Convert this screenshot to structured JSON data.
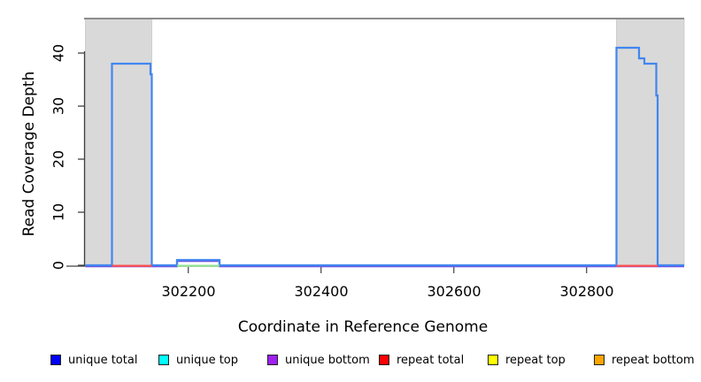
{
  "chart_data": {
    "type": "line",
    "title": "",
    "xlabel": "Coordinate in Reference Genome",
    "ylabel": "Read Coverage Depth",
    "xlim": [
      302043,
      302947
    ],
    "ylim": [
      0,
      46.5
    ],
    "xticks": [
      302200,
      302400,
      302600,
      302800
    ],
    "yticks": [
      0,
      10,
      20,
      30,
      40
    ],
    "grid": false,
    "legend_position": "bottom",
    "colors": {
      "plot_top_border": "#8c8c8c",
      "axis": "#404040",
      "shaded_region_fill": "#d9d9d9",
      "shaded_region_border": "#c8c8c8",
      "coverage_line": "#4186f0",
      "bottom_strand_line": "#7050e0",
      "repeat_baseline": "#ff5050",
      "bump_baseline": "#8fe08f"
    },
    "shaded_regions": [
      {
        "name": "left-repeat-region",
        "x0": 302045,
        "x1": 302145
      },
      {
        "name": "right-repeat-region",
        "x0": 302845,
        "x1": 302947
      }
    ],
    "series": [
      {
        "name": "unique bottom (line)",
        "color": "#7050e0",
        "points": [
          [
            302045,
            0
          ],
          [
            302183,
            0
          ],
          [
            302183,
            1
          ],
          [
            302247,
            1
          ],
          [
            302247,
            0
          ],
          [
            302947,
            0
          ]
        ]
      },
      {
        "name": "unique total (line)",
        "color": "#4186f0",
        "points": [
          [
            302045,
            0
          ],
          [
            302085,
            0
          ],
          [
            302085,
            38
          ],
          [
            302143,
            38
          ],
          [
            302143,
            36
          ],
          [
            302145,
            36
          ],
          [
            302145,
            0
          ],
          [
            302183,
            0
          ],
          [
            302183,
            1
          ],
          [
            302247,
            1
          ],
          [
            302247,
            0
          ],
          [
            302845,
            0
          ],
          [
            302845,
            41
          ],
          [
            302879,
            41
          ],
          [
            302879,
            39
          ],
          [
            302887,
            39
          ],
          [
            302887,
            38
          ],
          [
            302905,
            38
          ],
          [
            302905,
            32
          ],
          [
            302907,
            32
          ],
          [
            302907,
            0
          ],
          [
            302947,
            0
          ]
        ]
      },
      {
        "name": "bump baseline accent (line)",
        "color": "#8fe08f",
        "points": [
          [
            302183,
            0
          ],
          [
            302247,
            0
          ]
        ]
      },
      {
        "name": "repeat total left (line)",
        "color": "#ff5050",
        "points": [
          [
            302085,
            0
          ],
          [
            302145,
            0
          ]
        ]
      },
      {
        "name": "repeat total right (line)",
        "color": "#ff5050",
        "points": [
          [
            302845,
            0
          ],
          [
            302907,
            0
          ]
        ]
      }
    ]
  },
  "legend": {
    "items": [
      {
        "label": "unique total",
        "color": "#0000ff"
      },
      {
        "label": "unique top",
        "color": "#00ffff"
      },
      {
        "label": "unique bottom",
        "color": "#a020f0"
      },
      {
        "label": "repeat total",
        "color": "#ff0000"
      },
      {
        "label": "repeat top",
        "color": "#ffff00"
      },
      {
        "label": "repeat bottom",
        "color": "#ffa500"
      }
    ]
  },
  "labels": {
    "y_title": "Read Coverage Depth",
    "x_title": "Coordinate in Reference Genome"
  }
}
